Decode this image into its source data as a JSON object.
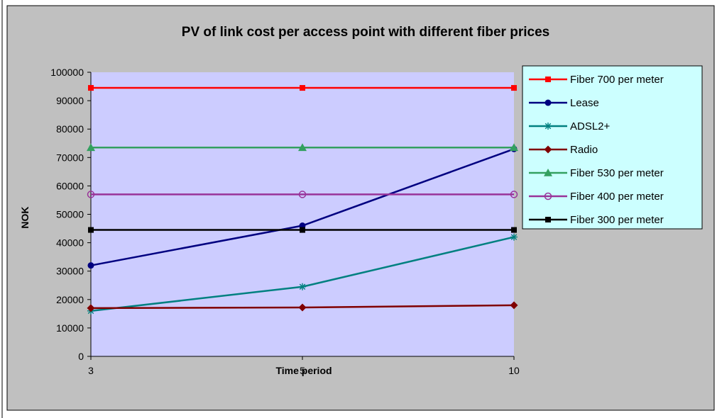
{
  "chart_data": {
    "type": "line",
    "title": "PV of link cost per access point with different fiber prices",
    "xlabel": "Time period",
    "ylabel": "NOK",
    "categories": [
      "3",
      "5",
      "10"
    ],
    "ylim": [
      0,
      100000
    ],
    "yticks": [
      0,
      10000,
      20000,
      30000,
      40000,
      50000,
      60000,
      70000,
      80000,
      90000,
      100000
    ],
    "legend_position": "right",
    "grid": false,
    "series": [
      {
        "name": "Fiber 700 per meter",
        "values": [
          94500,
          94500,
          94500
        ],
        "color": "#ff0000",
        "marker": "square"
      },
      {
        "name": "Lease",
        "values": [
          32000,
          46000,
          73000
        ],
        "color": "#000080",
        "marker": "circle-filled"
      },
      {
        "name": "ADSL2+",
        "values": [
          16000,
          24500,
          42000
        ],
        "color": "#008080",
        "marker": "star"
      },
      {
        "name": "Radio",
        "values": [
          17000,
          17200,
          18000
        ],
        "color": "#800000",
        "marker": "diamond"
      },
      {
        "name": "Fiber 530 per meter",
        "values": [
          73500,
          73500,
          73500
        ],
        "color": "#33a060",
        "marker": "triangle"
      },
      {
        "name": "Fiber 400 per meter",
        "values": [
          57000,
          57000,
          57000
        ],
        "color": "#993399",
        "marker": "circle-open"
      },
      {
        "name": "Fiber 300 per meter",
        "values": [
          44500,
          44500,
          44500
        ],
        "color": "#000000",
        "marker": "square"
      }
    ],
    "colors": {
      "chart_area": "#c0c0c0",
      "plot_area": "#ccccff",
      "legend_bg": "#ccffff"
    }
  }
}
